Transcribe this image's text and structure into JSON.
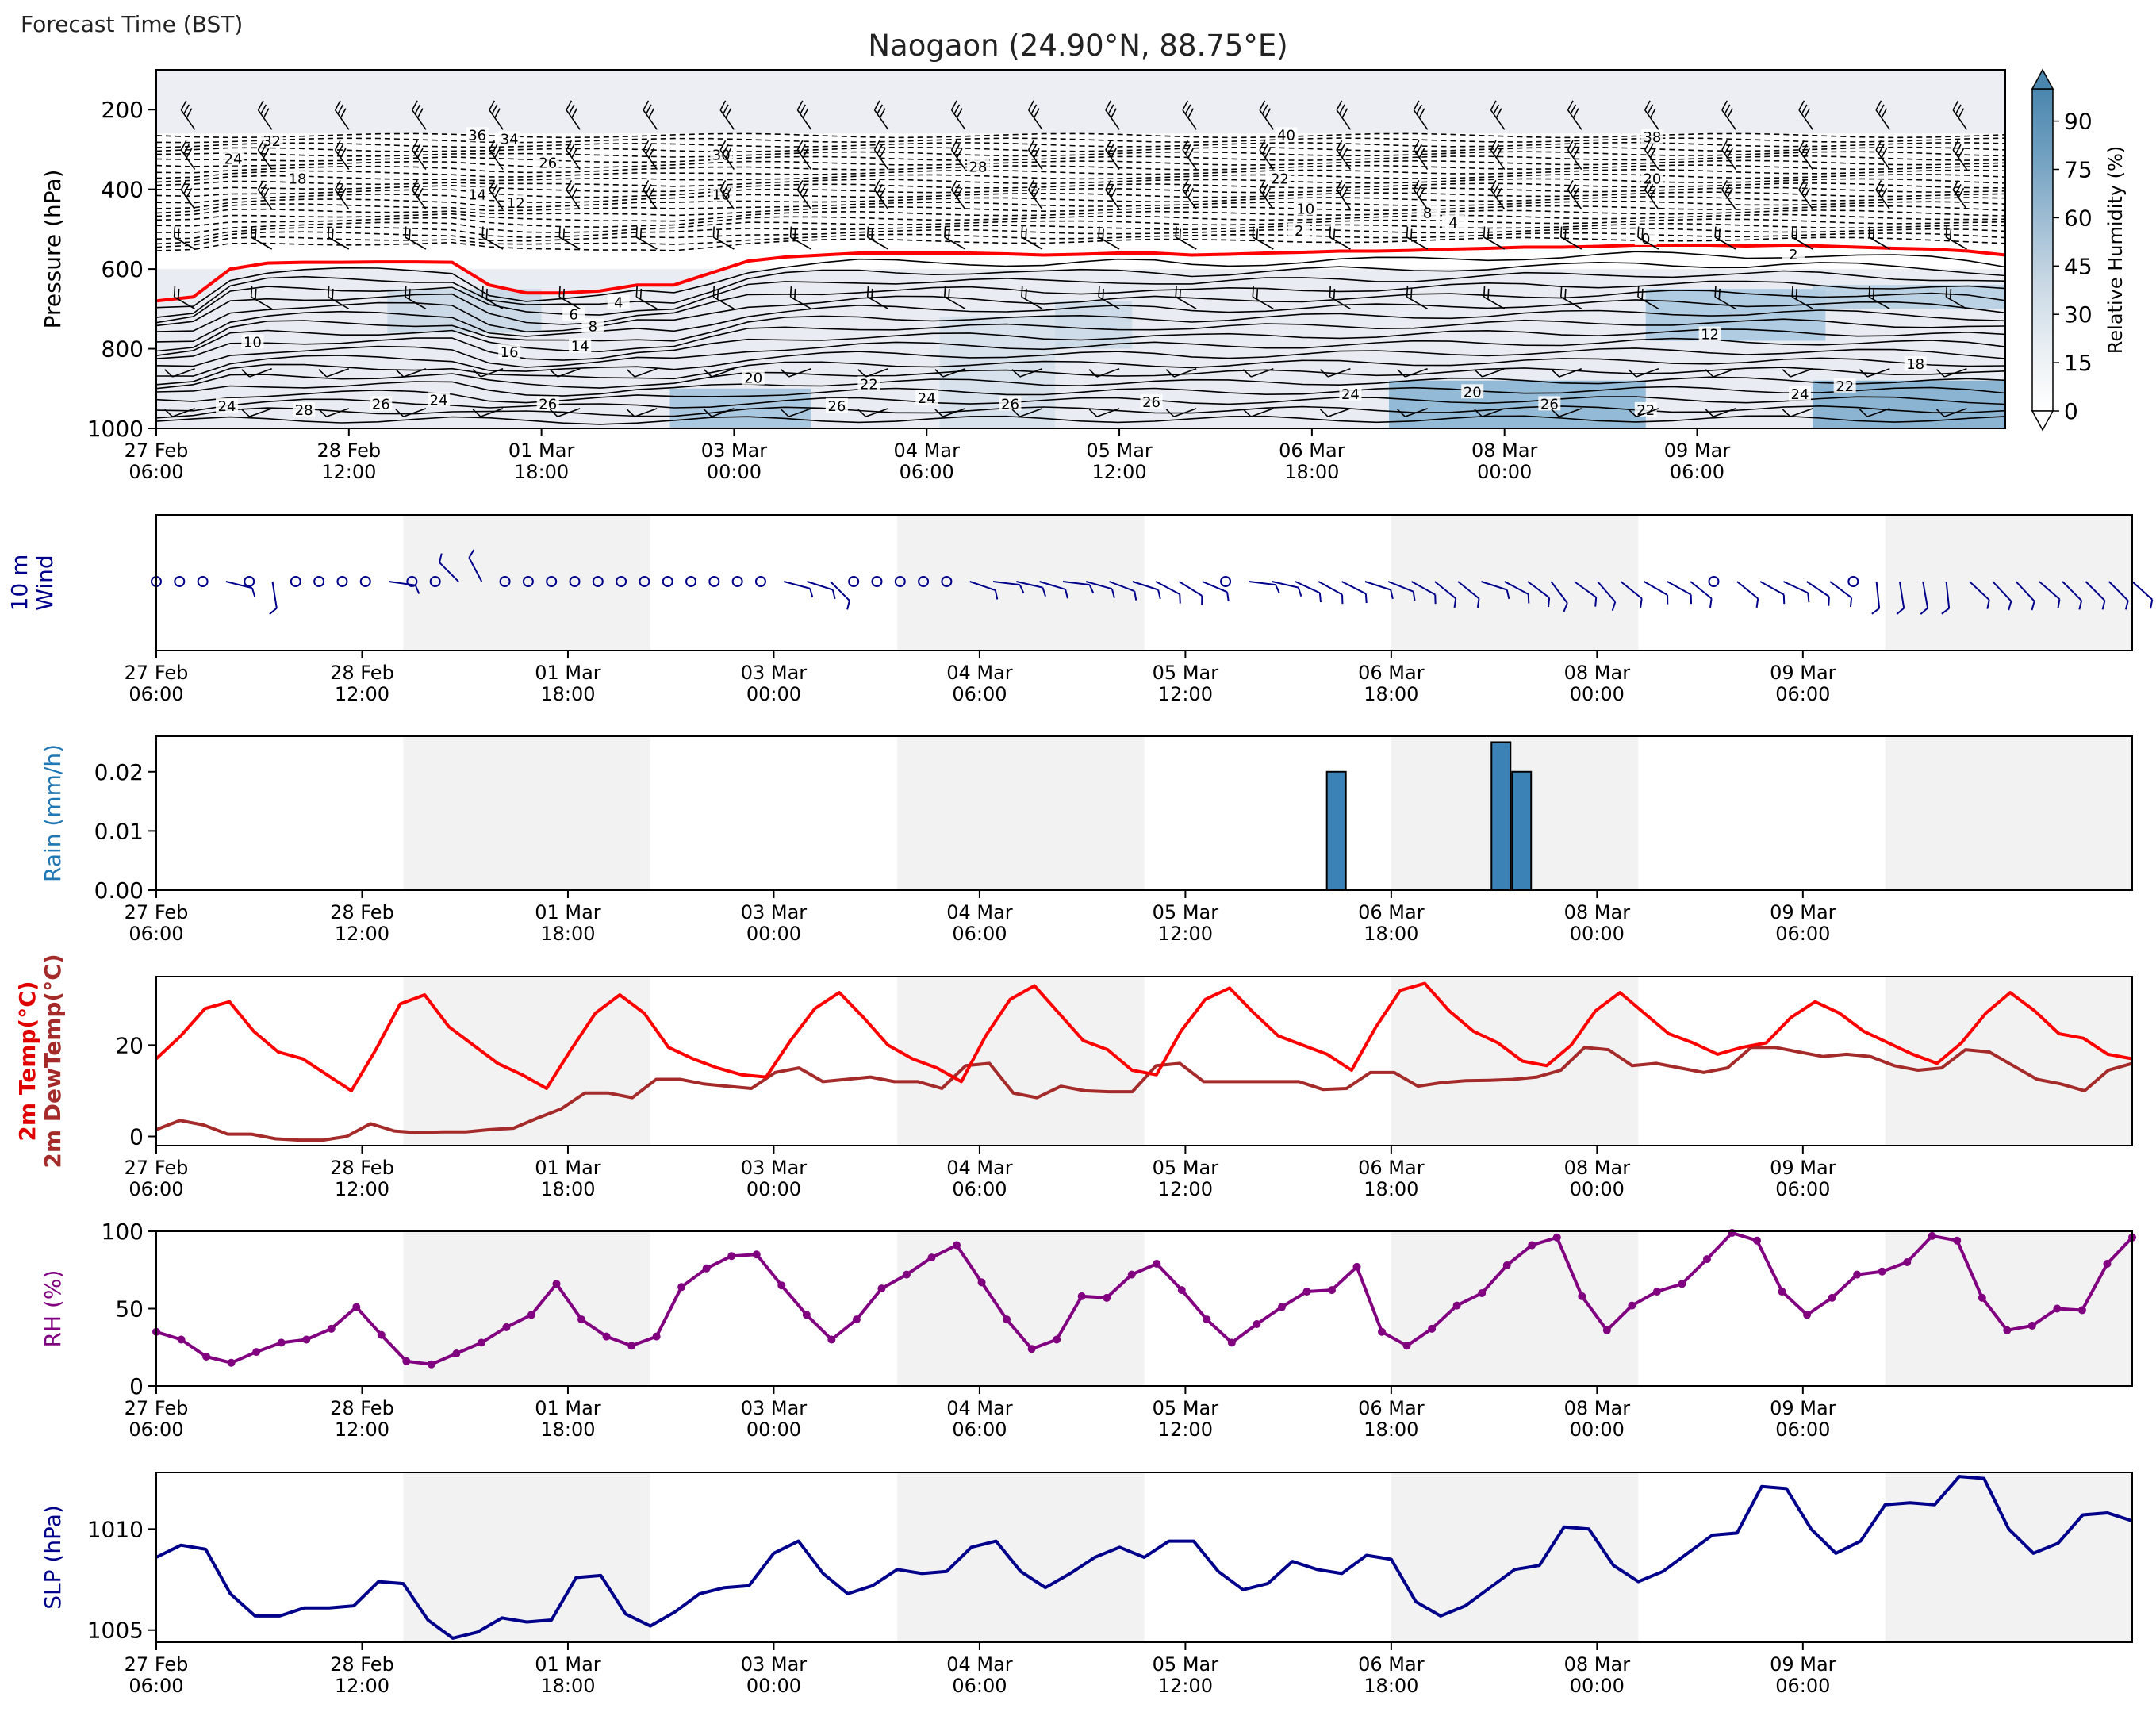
{
  "header": {
    "forecast_time_label": "Forecast Time (BST)",
    "title": "Naogaon (24.90°N, 88.75°E)"
  },
  "time_axis": {
    "range_hours": [
      0,
      288
    ],
    "tick_hours": [
      0,
      30,
      60,
      90,
      120,
      150,
      180,
      210,
      240
    ],
    "tick_labels": [
      [
        "27 Feb",
        "06:00"
      ],
      [
        "28 Feb",
        "12:00"
      ],
      [
        "01 Mar",
        "18:00"
      ],
      [
        "03 Mar",
        "00:00"
      ],
      [
        "04 Mar",
        "06:00"
      ],
      [
        "05 Mar",
        "12:00"
      ],
      [
        "06 Mar",
        "18:00"
      ],
      [
        "08 Mar",
        "00:00"
      ],
      [
        "09 Mar",
        "06:00"
      ]
    ],
    "night_shading_hours": [
      [
        36,
        72
      ],
      [
        108,
        144
      ],
      [
        180,
        216
      ],
      [
        252,
        288
      ]
    ],
    "shade_color": "#f2f2f2"
  },
  "chart_data": [
    {
      "type": "heatmap",
      "panel": "cross-section",
      "ylabel": "Pressure (hPa)",
      "ylim": [
        1000,
        100
      ],
      "yticks": [
        200,
        400,
        600,
        800,
        1000
      ],
      "colorbar": {
        "label": "Relative Humidity (%)",
        "ticks": [
          0,
          15,
          30,
          45,
          60,
          75,
          90
        ],
        "range": [
          0,
          100
        ],
        "colors": [
          "#ffffff",
          "#e8eef3",
          "#c9d8e4",
          "#9dbcd3",
          "#6f9fc0",
          "#4a86ad"
        ]
      },
      "freezing_level_color": "#ff0000",
      "freezing_level_hpa": [
        680,
        670,
        600,
        585,
        583,
        583,
        582,
        582,
        583,
        640,
        660,
        660,
        655,
        640,
        640,
        610,
        580,
        570,
        565,
        560,
        560,
        560,
        560,
        562,
        565,
        563,
        560,
        560,
        565,
        563,
        560,
        558,
        555,
        555,
        553,
        550,
        548,
        545,
        545,
        543,
        540,
        540,
        540,
        542,
        540,
        542,
        545,
        548,
        550,
        555,
        565
      ],
      "temperature_contour_labels": [
        {
          "label": "32",
          "t": 18,
          "p": 285
        },
        {
          "label": "24",
          "t": 12,
          "p": 330
        },
        {
          "label": "18",
          "t": 22,
          "p": 380
        },
        {
          "label": "36",
          "t": 50,
          "p": 270
        },
        {
          "label": "34",
          "t": 55,
          "p": 280
        },
        {
          "label": "14",
          "t": 50,
          "p": 420
        },
        {
          "label": "12",
          "t": 56,
          "p": 440
        },
        {
          "label": "26",
          "t": 61,
          "p": 340
        },
        {
          "label": "30",
          "t": 88,
          "p": 320
        },
        {
          "label": "16",
          "t": 88,
          "p": 420
        },
        {
          "label": "28",
          "t": 128,
          "p": 350
        },
        {
          "label": "40",
          "t": 176,
          "p": 270
        },
        {
          "label": "22",
          "t": 175,
          "p": 380
        },
        {
          "label": "10",
          "t": 179,
          "p": 455
        },
        {
          "label": "2",
          "t": 178,
          "p": 510
        },
        {
          "label": "8",
          "t": 198,
          "p": 465
        },
        {
          "label": "4",
          "t": 202,
          "p": 490
        },
        {
          "label": "38",
          "t": 233,
          "p": 275
        },
        {
          "label": "20",
          "t": 233,
          "p": 380
        },
        {
          "label": "0",
          "t": 232,
          "p": 530
        },
        {
          "label": "2",
          "t": 255,
          "p": 570
        },
        {
          "label": "4",
          "t": 72,
          "p": 690
        },
        {
          "label": "6",
          "t": 65,
          "p": 720
        },
        {
          "label": "8",
          "t": 68,
          "p": 750
        },
        {
          "label": "10",
          "t": 15,
          "p": 790
        },
        {
          "label": "16",
          "t": 55,
          "p": 815
        },
        {
          "label": "14",
          "t": 66,
          "p": 800
        },
        {
          "label": "20",
          "t": 93,
          "p": 880
        },
        {
          "label": "22",
          "t": 111,
          "p": 895
        },
        {
          "label": "12",
          "t": 242,
          "p": 770
        },
        {
          "label": "18",
          "t": 274,
          "p": 845
        },
        {
          "label": "20",
          "t": 205,
          "p": 915
        },
        {
          "label": "24",
          "t": 11,
          "p": 950
        },
        {
          "label": "28",
          "t": 23,
          "p": 960
        },
        {
          "label": "26",
          "t": 35,
          "p": 945
        },
        {
          "label": "24",
          "t": 44,
          "p": 935
        },
        {
          "label": "26",
          "t": 61,
          "p": 945
        },
        {
          "label": "26",
          "t": 106,
          "p": 950
        },
        {
          "label": "24",
          "t": 120,
          "p": 930
        },
        {
          "label": "26",
          "t": 133,
          "p": 945
        },
        {
          "label": "26",
          "t": 155,
          "p": 940
        },
        {
          "label": "24",
          "t": 186,
          "p": 920
        },
        {
          "label": "26",
          "t": 217,
          "p": 945
        },
        {
          "label": "22",
          "t": 232,
          "p": 960
        },
        {
          "label": "24",
          "t": 256,
          "p": 920
        },
        {
          "label": "22",
          "t": 263,
          "p": 900
        }
      ],
      "wind_barb_levels_hpa": [
        250,
        350,
        450,
        550,
        700,
        850,
        950
      ]
    },
    {
      "type": "scatter",
      "panel": "10m-wind",
      "ylabel": [
        "10 m",
        "Wind"
      ],
      "color": "#00008b",
      "wind_u": [
        0,
        0,
        0,
        2,
        0,
        0.3,
        0,
        0,
        0,
        0,
        1.5,
        0,
        0,
        -1.2,
        -0.8,
        0,
        0,
        0,
        0,
        0,
        0,
        0,
        0,
        0,
        0,
        0,
        0,
        1.5,
        1.8,
        1.2,
        0,
        0,
        0,
        0,
        0,
        1.7,
        1.6,
        1.7,
        1.6,
        1.6,
        1.7,
        1.6,
        1.8,
        1.5,
        1.6,
        1.4,
        0,
        1.6,
        1.8,
        1.7,
        1.8,
        1.6,
        1.9,
        2.0,
        1.8,
        1.6,
        1.5,
        1.9,
        1.7,
        1.6,
        1.2,
        1.4,
        1.2,
        1.6,
        1.7,
        1.6,
        1.5,
        0,
        1.5,
        1.8,
        1.7,
        1.5,
        1.6,
        0,
        0.2,
        0.3,
        0.3,
        0.2,
        1.4,
        1.3,
        1.3,
        1.4,
        1.4,
        1.3,
        1.5,
        1.8
      ],
      "wind_v": [
        0,
        0,
        0,
        0.5,
        0,
        1.8,
        0,
        0,
        0,
        0,
        0.2,
        0,
        0,
        -1.2,
        -1.5,
        0,
        0,
        0,
        0,
        0,
        0,
        0,
        0,
        0,
        0,
        0,
        0,
        0.4,
        0.6,
        1.2,
        0,
        0,
        0,
        0,
        0,
        0.6,
        0.2,
        0.4,
        0.5,
        0.2,
        0.5,
        0.6,
        0.6,
        0.8,
        1.0,
        0.6,
        0,
        0.2,
        0.4,
        0.8,
        1.0,
        0.8,
        0.6,
        0.8,
        1.0,
        1.3,
        1.2,
        0.6,
        0.9,
        1.2,
        1.6,
        1.0,
        1.4,
        1.3,
        1.0,
        0.9,
        1.2,
        0,
        1.2,
        1.0,
        0.8,
        1.0,
        1.2,
        0,
        1.8,
        1.8,
        1.7,
        1.8,
        1.3,
        1.4,
        1.4,
        1.2,
        1.4,
        1.3,
        1.5,
        1.6
      ]
    },
    {
      "type": "bar",
      "panel": "rain",
      "ylabel": "Rain (mm/h)",
      "ylabel_color": "#1f77b4",
      "ylim": [
        0,
        0.026
      ],
      "yticks": [
        0.0,
        0.01,
        0.02
      ],
      "ytick_labels": [
        "0.00",
        "0.01",
        "0.02"
      ],
      "bar_color": "#3b82b6",
      "bars": [
        {
          "x": 172,
          "value": 0.02
        },
        {
          "x": 196,
          "value": 0.025
        },
        {
          "x": 199,
          "value": 0.02
        }
      ]
    },
    {
      "type": "line",
      "panel": "temperature",
      "ylabel": [
        "2m Temp(°C)",
        "2m DewTemp(°C)"
      ],
      "ylabel_colors": [
        "#e00000",
        "#a52a2a"
      ],
      "ylim": [
        -2,
        35
      ],
      "yticks": [
        0,
        20
      ],
      "series": [
        {
          "color": "#ff0000",
          "values": [
            17,
            22,
            28,
            29.5,
            23,
            18.5,
            17,
            13.5,
            10,
            19,
            29,
            31,
            24,
            20,
            16,
            13.5,
            10.5,
            19,
            27,
            31,
            27,
            19.5,
            17,
            15,
            13.5,
            13,
            21,
            28,
            31.5,
            26,
            20,
            17,
            15,
            12,
            22,
            30,
            33,
            27,
            21,
            19,
            14.5,
            13.5,
            23,
            30,
            32.5,
            27,
            22,
            20,
            18,
            14.5,
            24,
            32,
            33.5,
            27.5,
            23,
            20.5,
            16.5,
            15.5,
            20,
            27.5,
            31.5,
            27,
            22.5,
            20.5,
            18,
            19.5,
            20.5,
            26,
            29.5,
            27,
            23,
            20.5,
            18,
            16,
            20.5,
            27,
            31.5,
            27.5,
            22.5,
            21.5,
            18,
            17
          ]
        },
        {
          "color": "#a52a2a",
          "values": [
            1.5,
            3.5,
            2.5,
            0.5,
            0.5,
            -0.5,
            -0.8,
            -0.8,
            0,
            2.8,
            1.2,
            0.8,
            1,
            1,
            1.5,
            1.8,
            4,
            6,
            9.5,
            9.5,
            8.5,
            12.5,
            12.5,
            11.5,
            11,
            10.5,
            14,
            15,
            12,
            12.5,
            13,
            12,
            12,
            10.5,
            15.5,
            16,
            9.5,
            8.5,
            11,
            10,
            9.8,
            9.8,
            15.5,
            16,
            12,
            12,
            12,
            12,
            12,
            10.3,
            10.5,
            14,
            14,
            11,
            11.8,
            12.2,
            12.3,
            12.5,
            13,
            14.5,
            19.5,
            19,
            15.5,
            16,
            15,
            14,
            15,
            19.5,
            19.5,
            18.5,
            17.5,
            18,
            17.5,
            15.5,
            14.5,
            15,
            19,
            18.5,
            15.5,
            12.5,
            11.5,
            10,
            14.5,
            16
          ]
        }
      ]
    },
    {
      "type": "line",
      "panel": "rh",
      "ylabel": "RH (%)",
      "ylabel_color": "#800080",
      "ylim": [
        0,
        100
      ],
      "yticks": [
        0,
        50,
        100
      ],
      "color": "#800080",
      "markers": true,
      "values": [
        35,
        30,
        19,
        15,
        22,
        28,
        30,
        37,
        51,
        33,
        16,
        14,
        21,
        28,
        38,
        46,
        66,
        43,
        32,
        26,
        32,
        64,
        76,
        84,
        85,
        65,
        46,
        30,
        43,
        63,
        72,
        83,
        91,
        67,
        43,
        24,
        30,
        58,
        57,
        72,
        79,
        62,
        43,
        28,
        40,
        51,
        61,
        62,
        77,
        35,
        26,
        37,
        52,
        60,
        78,
        91,
        96,
        58,
        36,
        52,
        61,
        66,
        82,
        99,
        94,
        61,
        46,
        57,
        72,
        74,
        80,
        97,
        94,
        57,
        36,
        39,
        50,
        49,
        79,
        96
      ]
    },
    {
      "type": "line",
      "panel": "slp",
      "ylabel": "SLP (hPa)",
      "ylabel_color": "#00008b",
      "ylim": [
        1004.4,
        1012.8
      ],
      "yticks": [
        1005,
        1010
      ],
      "color": "#00008b",
      "values": [
        1008.6,
        1009.2,
        1009,
        1006.8,
        1005.7,
        1005.7,
        1006.1,
        1006.1,
        1006.2,
        1007.4,
        1007.3,
        1005.5,
        1004.6,
        1004.9,
        1005.6,
        1005.4,
        1005.5,
        1007.6,
        1007.7,
        1005.8,
        1005.2,
        1005.9,
        1006.8,
        1007.1,
        1007.2,
        1008.8,
        1009.4,
        1007.8,
        1006.8,
        1007.2,
        1008,
        1007.8,
        1007.9,
        1009.1,
        1009.4,
        1007.9,
        1007.1,
        1007.8,
        1008.6,
        1009.1,
        1008.6,
        1009.4,
        1009.4,
        1007.9,
        1007,
        1007.3,
        1008.4,
        1008,
        1007.8,
        1008.7,
        1008.5,
        1006.4,
        1005.7,
        1006.2,
        1007.1,
        1008,
        1008.2,
        1010.1,
        1010,
        1008.2,
        1007.4,
        1007.9,
        1008.8,
        1009.7,
        1009.8,
        1012.1,
        1012,
        1010,
        1008.8,
        1009.4,
        1011.2,
        1011.3,
        1011.2,
        1012.6,
        1012.5,
        1010,
        1008.8,
        1009.3,
        1010.7,
        1010.8,
        1010.4
      ]
    }
  ]
}
